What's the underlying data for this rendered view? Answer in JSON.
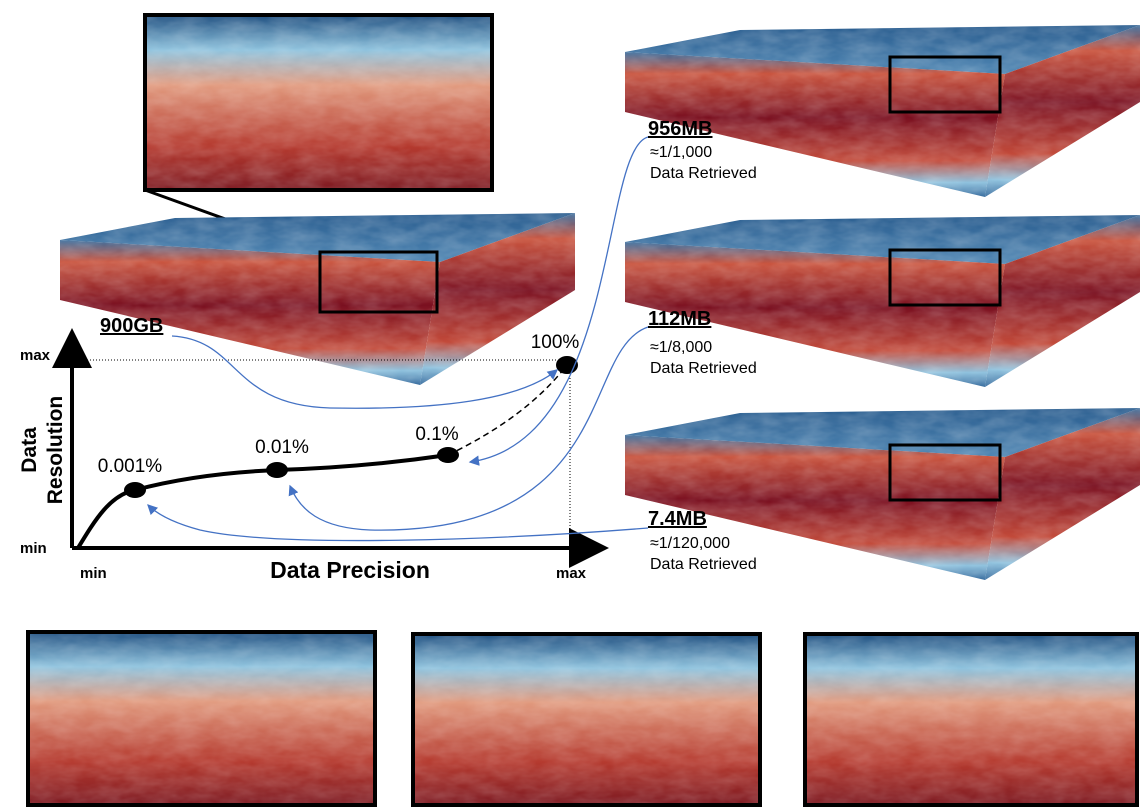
{
  "source": {
    "size": "900GB"
  },
  "chart": {
    "y_axis": {
      "title_lines": [
        "Data",
        "Resolution"
      ],
      "max": "max",
      "min": "min"
    },
    "x_axis": {
      "title": "Data Precision",
      "min": "min",
      "max": "max"
    },
    "points": [
      "0.001%",
      "0.01%",
      "0.1%",
      "100%"
    ]
  },
  "retrievals": [
    {
      "size": "956MB",
      "ratio": "≈1/1,000",
      "note": "Data Retrieved"
    },
    {
      "size": "112MB",
      "ratio": "≈1/8,000",
      "note": "Data Retrieved"
    },
    {
      "size": "7.4MB",
      "ratio": "≈1/120,000",
      "note": "Data Retrieved"
    }
  ]
}
